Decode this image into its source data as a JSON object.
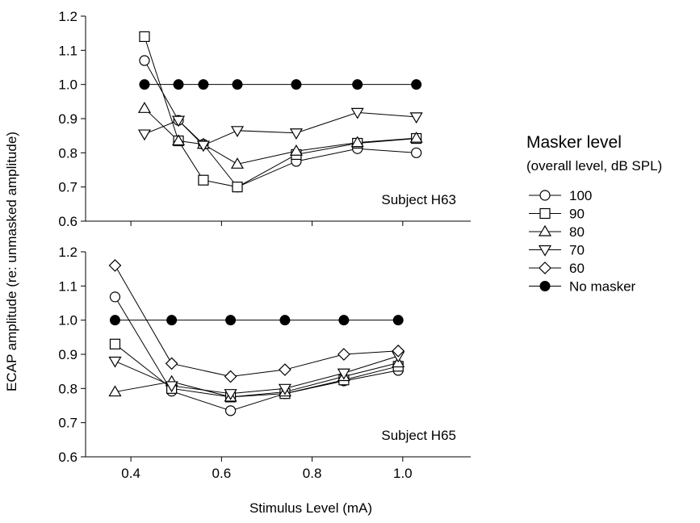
{
  "chart_data": {
    "type": "line",
    "ylabel": "ECAP amplitude (re: unmasked amplitude)",
    "xlabel": "Stimulus Level (mA)",
    "xlim": [
      0.3,
      1.15
    ],
    "xticks": [
      0.4,
      0.6,
      0.8,
      1.0
    ],
    "xtick_labels": [
      "0.4",
      "0.6",
      "0.8",
      "1.0"
    ],
    "ylim": [
      0.6,
      1.2
    ],
    "yticks": [
      0.6,
      0.7,
      0.8,
      0.9,
      1.0,
      1.1,
      1.2
    ],
    "ytick_labels": [
      "0.6",
      "0.7",
      "0.8",
      "0.9",
      "1.0",
      "1.1",
      "1.2"
    ],
    "grid": false,
    "legend": {
      "title": "Masker level",
      "subtitle": "(overall level, dB SPL)",
      "placement": "right",
      "entries": [
        {
          "label": "100",
          "marker": "circle-open"
        },
        {
          "label": "90",
          "marker": "square-open"
        },
        {
          "label": "80",
          "marker": "triangle-up-open"
        },
        {
          "label": "70",
          "marker": "triangle-down-open"
        },
        {
          "label": "60",
          "marker": "diamond-open"
        },
        {
          "label": "No masker",
          "marker": "circle-filled"
        }
      ]
    },
    "panels": [
      {
        "subject": "Subject H63",
        "series": [
          {
            "name": "100",
            "marker": "circle-open",
            "x": [
              0.43,
              0.505,
              0.56,
              0.635,
              0.765,
              0.9,
              1.03
            ],
            "y": [
              1.07,
              0.895,
              0.825,
              0.7,
              0.775,
              0.812,
              0.8
            ]
          },
          {
            "name": "90",
            "marker": "square-open",
            "x": [
              0.43,
              0.505,
              0.56,
              0.635,
              0.765,
              0.9,
              1.03
            ],
            "y": [
              1.14,
              0.835,
              0.72,
              0.7,
              0.795,
              0.828,
              0.842
            ]
          },
          {
            "name": "80",
            "marker": "triangle-up-open",
            "x": [
              0.43,
              0.505,
              0.56,
              0.635,
              0.765,
              0.9,
              1.03
            ],
            "y": [
              0.93,
              0.835,
              0.825,
              0.767,
              0.805,
              0.83,
              0.843
            ]
          },
          {
            "name": "70",
            "marker": "triangle-down-open",
            "x": [
              0.43,
              0.505,
              0.56,
              0.635,
              0.765,
              0.9,
              1.03
            ],
            "y": [
              0.855,
              0.895,
              0.822,
              0.865,
              0.858,
              0.918,
              0.905
            ]
          },
          {
            "name": "No masker",
            "marker": "circle-filled",
            "x": [
              0.43,
              0.505,
              0.56,
              0.635,
              0.765,
              0.9,
              1.03
            ],
            "y": [
              1.0,
              1.0,
              1.0,
              1.0,
              1.0,
              1.0,
              1.0
            ]
          }
        ]
      },
      {
        "subject": "Subject H65",
        "series": [
          {
            "name": "100",
            "marker": "circle-open",
            "x": [
              0.365,
              0.49,
              0.62,
              0.74,
              0.87,
              0.99
            ],
            "y": [
              1.068,
              0.792,
              0.735,
              0.785,
              0.822,
              0.853
            ]
          },
          {
            "name": "90",
            "marker": "square-open",
            "x": [
              0.365,
              0.49,
              0.62,
              0.74,
              0.87,
              0.99
            ],
            "y": [
              0.93,
              0.8,
              0.775,
              0.785,
              0.825,
              0.865
            ]
          },
          {
            "name": "80",
            "marker": "triangle-up-open",
            "x": [
              0.365,
              0.49,
              0.62,
              0.74,
              0.87,
              0.99
            ],
            "y": [
              0.79,
              0.82,
              0.775,
              0.79,
              0.835,
              0.875
            ]
          },
          {
            "name": "70",
            "marker": "triangle-down-open",
            "x": [
              0.365,
              0.49,
              0.62,
              0.74,
              0.87,
              0.99
            ],
            "y": [
              0.88,
              0.808,
              0.785,
              0.8,
              0.845,
              0.895
            ]
          },
          {
            "name": "60",
            "marker": "diamond-open",
            "x": [
              0.365,
              0.49,
              0.62,
              0.74,
              0.87,
              0.99
            ],
            "y": [
              1.16,
              0.873,
              0.835,
              0.855,
              0.9,
              0.91
            ]
          },
          {
            "name": "No masker",
            "marker": "circle-filled",
            "x": [
              0.365,
              0.49,
              0.62,
              0.74,
              0.87,
              0.99
            ],
            "y": [
              1.0,
              1.0,
              1.0,
              1.0,
              1.0,
              1.0
            ]
          }
        ]
      }
    ]
  }
}
